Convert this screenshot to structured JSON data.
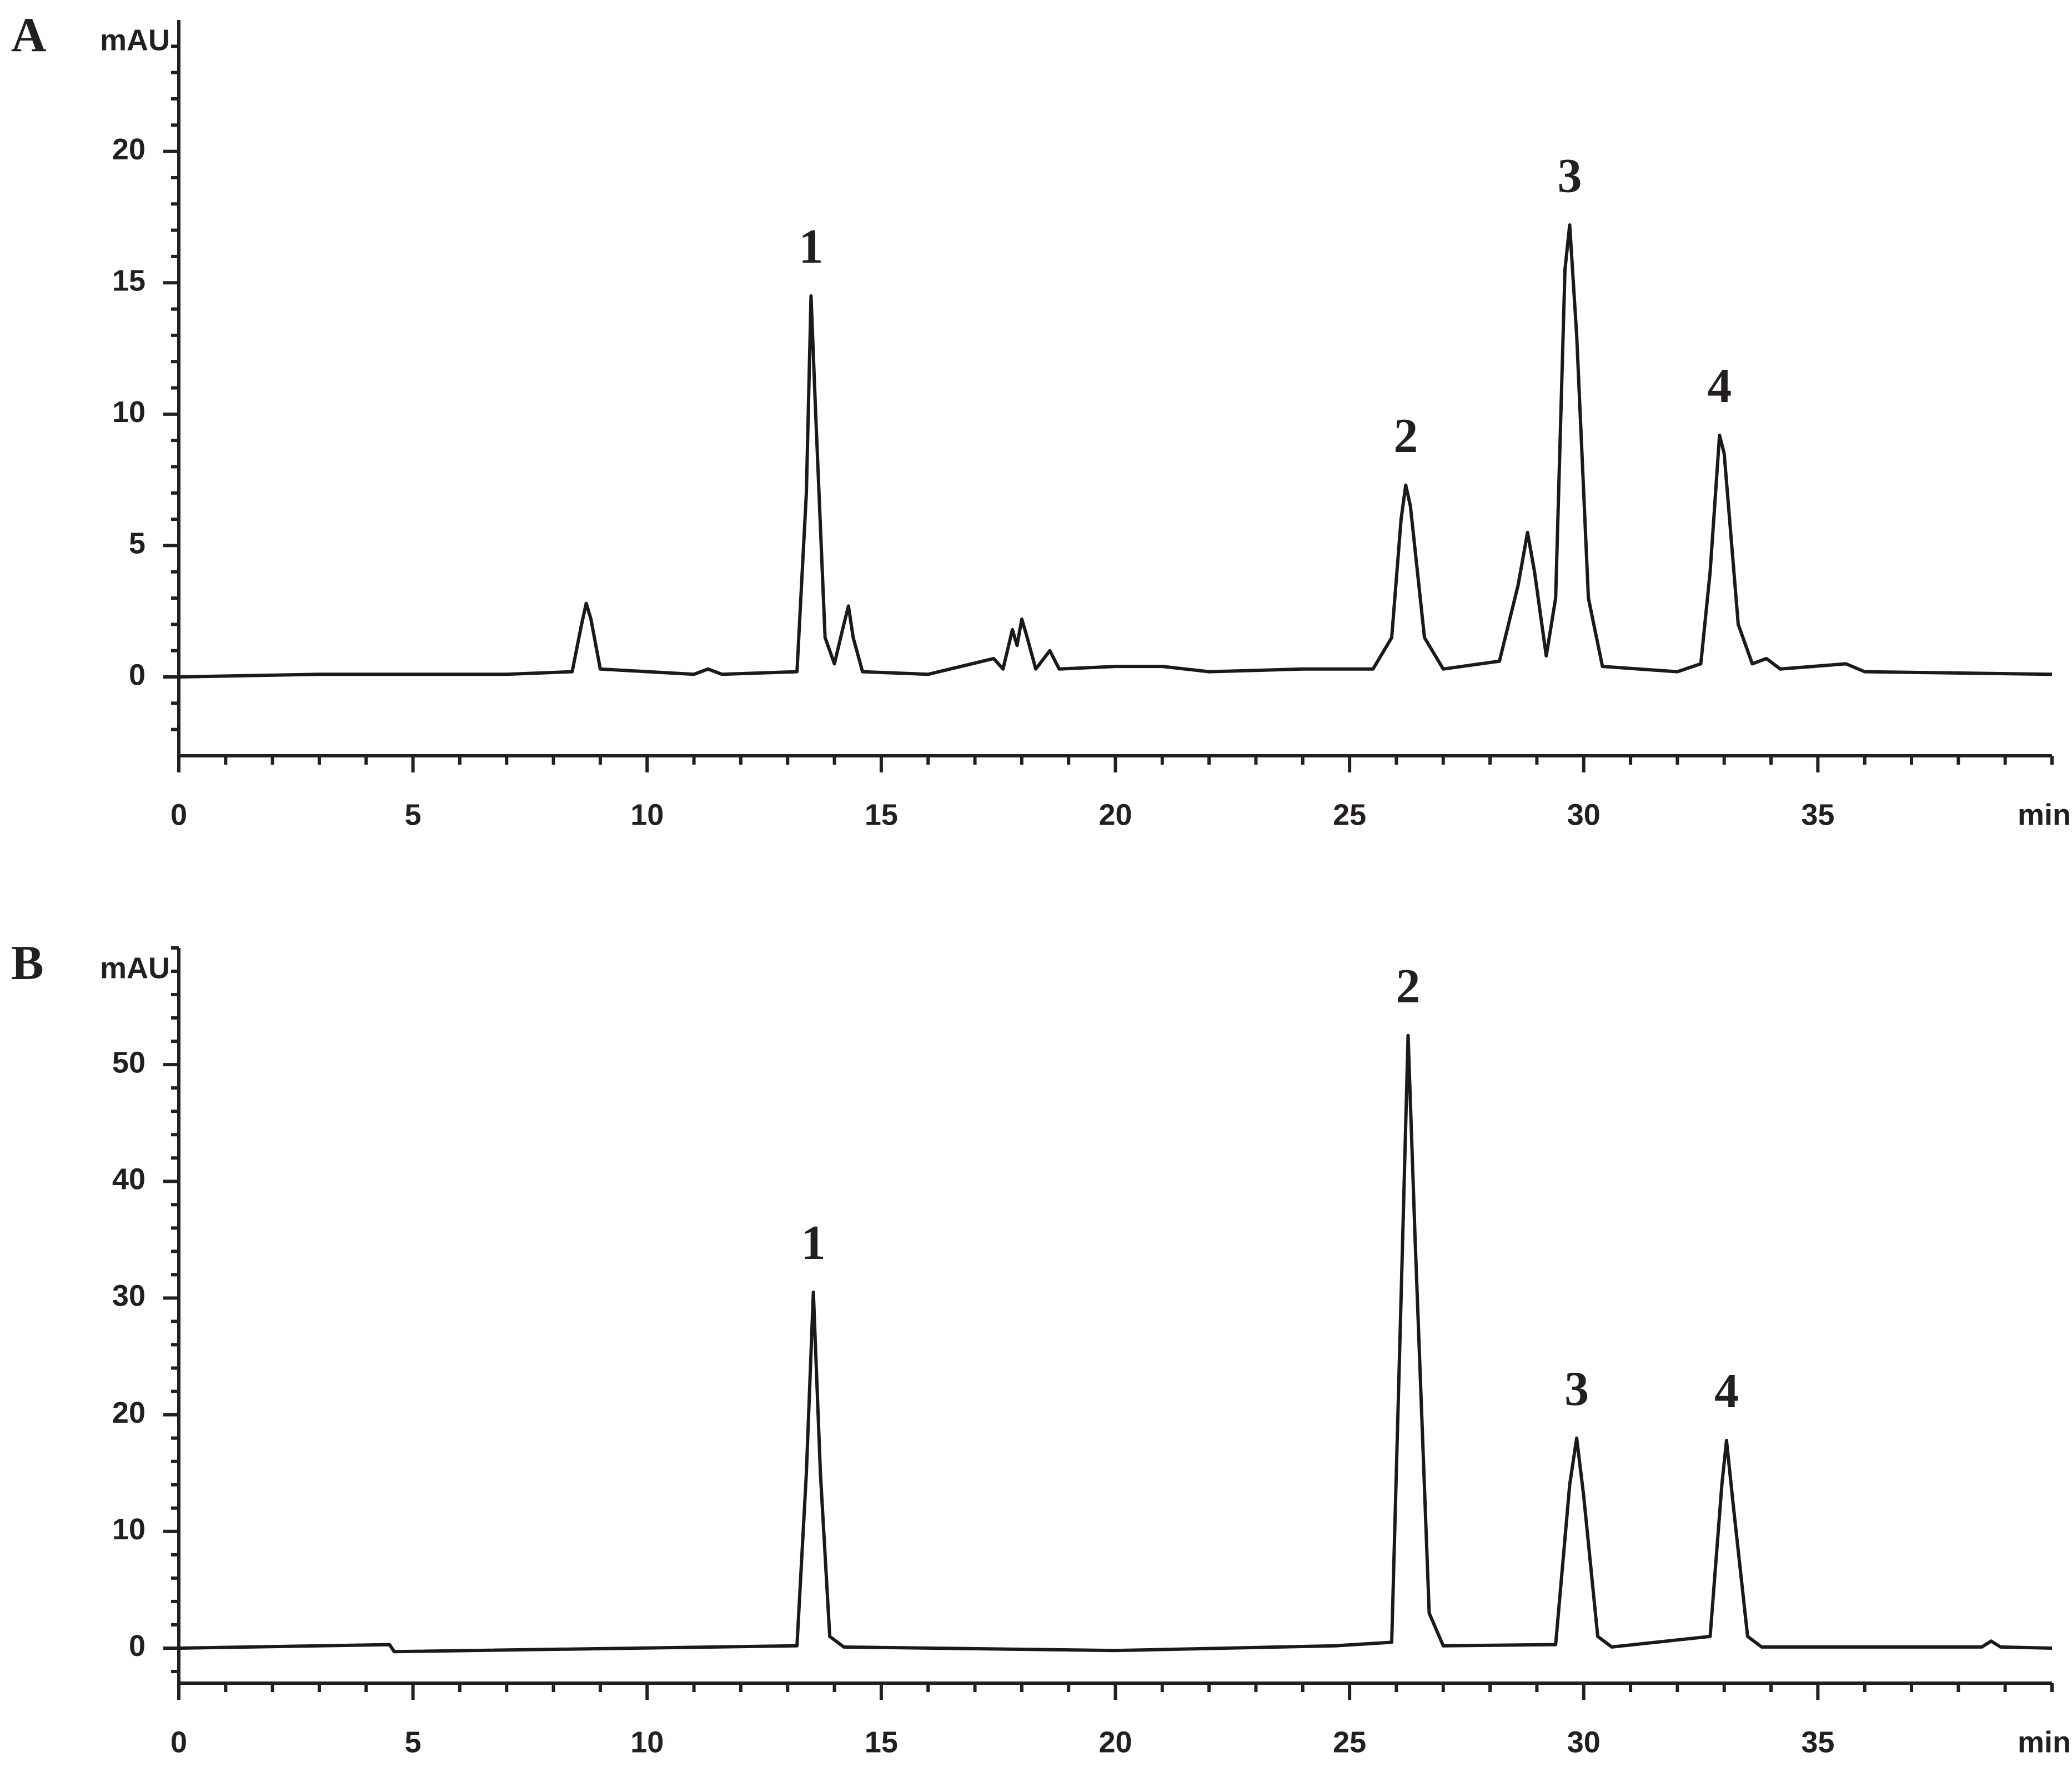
{
  "chart_data": [
    {
      "type": "line",
      "panel_label": "A",
      "y_label": "mAU",
      "x_label": "min",
      "color": "#1a1a1a",
      "xlim": [
        0,
        40
      ],
      "xticks": [
        0,
        5,
        10,
        15,
        20,
        25,
        30,
        35
      ],
      "xminorticks": [
        1,
        2,
        3,
        4,
        6,
        7,
        8,
        9,
        11,
        12,
        13,
        14,
        16,
        17,
        18,
        19,
        21,
        22,
        23,
        24,
        26,
        27,
        28,
        29,
        31,
        32,
        33,
        34,
        36,
        37,
        38,
        39,
        40
      ],
      "ylim": [
        -3,
        25
      ],
      "yticks": [
        0,
        5,
        10,
        15,
        20
      ],
      "yminorticks": [
        -2,
        -1,
        1,
        2,
        3,
        4,
        6,
        7,
        8,
        9,
        11,
        12,
        13,
        14,
        16,
        17,
        18,
        19,
        21,
        22,
        23,
        24
      ],
      "x": [
        0,
        3,
        4.5,
        7,
        8.4,
        8.6,
        8.7,
        8.8,
        9.0,
        11,
        11.3,
        11.6,
        13.2,
        13.4,
        13.5,
        13.6,
        13.8,
        14.0,
        14.2,
        14.3,
        14.4,
        14.6,
        16,
        17.4,
        17.6,
        17.8,
        17.9,
        18.0,
        18.1,
        18.3,
        18.6,
        18.8,
        20,
        21,
        22,
        24,
        25.5,
        25.9,
        26.1,
        26.2,
        26.3,
        26.6,
        27,
        28.2,
        28.6,
        28.8,
        28.95,
        29.2,
        29.4,
        29.6,
        29.7,
        29.85,
        30.1,
        30.4,
        32,
        32.5,
        32.7,
        32.9,
        33.0,
        33.3,
        33.6,
        33.9,
        34.2,
        35.6,
        36,
        40
      ],
      "values": [
        0,
        0.1,
        0.1,
        0.1,
        0.2,
        2.0,
        2.8,
        2.2,
        0.3,
        0.1,
        0.3,
        0.1,
        0.2,
        7,
        14.5,
        10,
        1.5,
        0.5,
        2.0,
        2.7,
        1.5,
        0.2,
        0.1,
        0.7,
        0.3,
        1.8,
        1.2,
        2.2,
        1.6,
        0.3,
        1.0,
        0.3,
        0.4,
        0.4,
        0.2,
        0.3,
        0.3,
        1.5,
        6,
        7.3,
        6.5,
        1.5,
        0.3,
        0.6,
        3.5,
        5.5,
        4,
        0.8,
        3,
        15.5,
        17.2,
        13,
        3,
        0.4,
        0.2,
        0.5,
        4,
        9.2,
        8.5,
        2,
        0.5,
        0.7,
        0.3,
        0.5,
        0.2,
        0.1
      ],
      "annotations": [
        {
          "text": "1",
          "x": 13.5
        },
        {
          "text": "2",
          "x": 26.2
        },
        {
          "text": "3",
          "x": 29.7
        },
        {
          "text": "4",
          "x": 32.9
        }
      ]
    },
    {
      "type": "line",
      "panel_label": "B",
      "y_label": "mAU",
      "x_label": "min",
      "color": "#1a1a1a",
      "xlim": [
        0,
        40
      ],
      "xticks": [
        0,
        5,
        10,
        15,
        20,
        25,
        30,
        35
      ],
      "xminorticks": [
        1,
        2,
        3,
        4,
        6,
        7,
        8,
        9,
        11,
        12,
        13,
        14,
        16,
        17,
        18,
        19,
        21,
        22,
        23,
        24,
        26,
        27,
        28,
        29,
        31,
        32,
        33,
        34,
        36,
        37,
        38,
        39,
        40
      ],
      "ylim": [
        -3,
        60
      ],
      "yticks": [
        0,
        10,
        20,
        30,
        40,
        50
      ],
      "yminorticks": [
        -2,
        2,
        4,
        6,
        8,
        12,
        14,
        16,
        18,
        22,
        24,
        26,
        28,
        32,
        34,
        36,
        38,
        42,
        44,
        46,
        48,
        52,
        54,
        56,
        58,
        60
      ],
      "x": [
        0,
        4.5,
        4.6,
        13.2,
        13.4,
        13.55,
        13.7,
        13.9,
        14.2,
        20,
        24.7,
        25.9,
        26.1,
        26.25,
        26.4,
        26.7,
        27.0,
        29.4,
        29.7,
        29.85,
        30.0,
        30.3,
        30.6,
        32.7,
        32.95,
        33.05,
        33.2,
        33.5,
        33.8,
        38.5,
        38.7,
        38.9,
        40
      ],
      "values": [
        0,
        0.3,
        -0.3,
        0.2,
        15,
        30.5,
        15,
        1,
        0.1,
        -0.2,
        0.2,
        0.5,
        30,
        52.5,
        35,
        3,
        0.2,
        0.3,
        14,
        18,
        13,
        1,
        0.1,
        1,
        14,
        17.8,
        12,
        1,
        0.1,
        0.1,
        0.6,
        0.1,
        0
      ],
      "annotations": [
        {
          "text": "1",
          "x": 13.55
        },
        {
          "text": "2",
          "x": 26.25
        },
        {
          "text": "3",
          "x": 29.85
        },
        {
          "text": "4",
          "x": 33.05
        }
      ]
    }
  ]
}
